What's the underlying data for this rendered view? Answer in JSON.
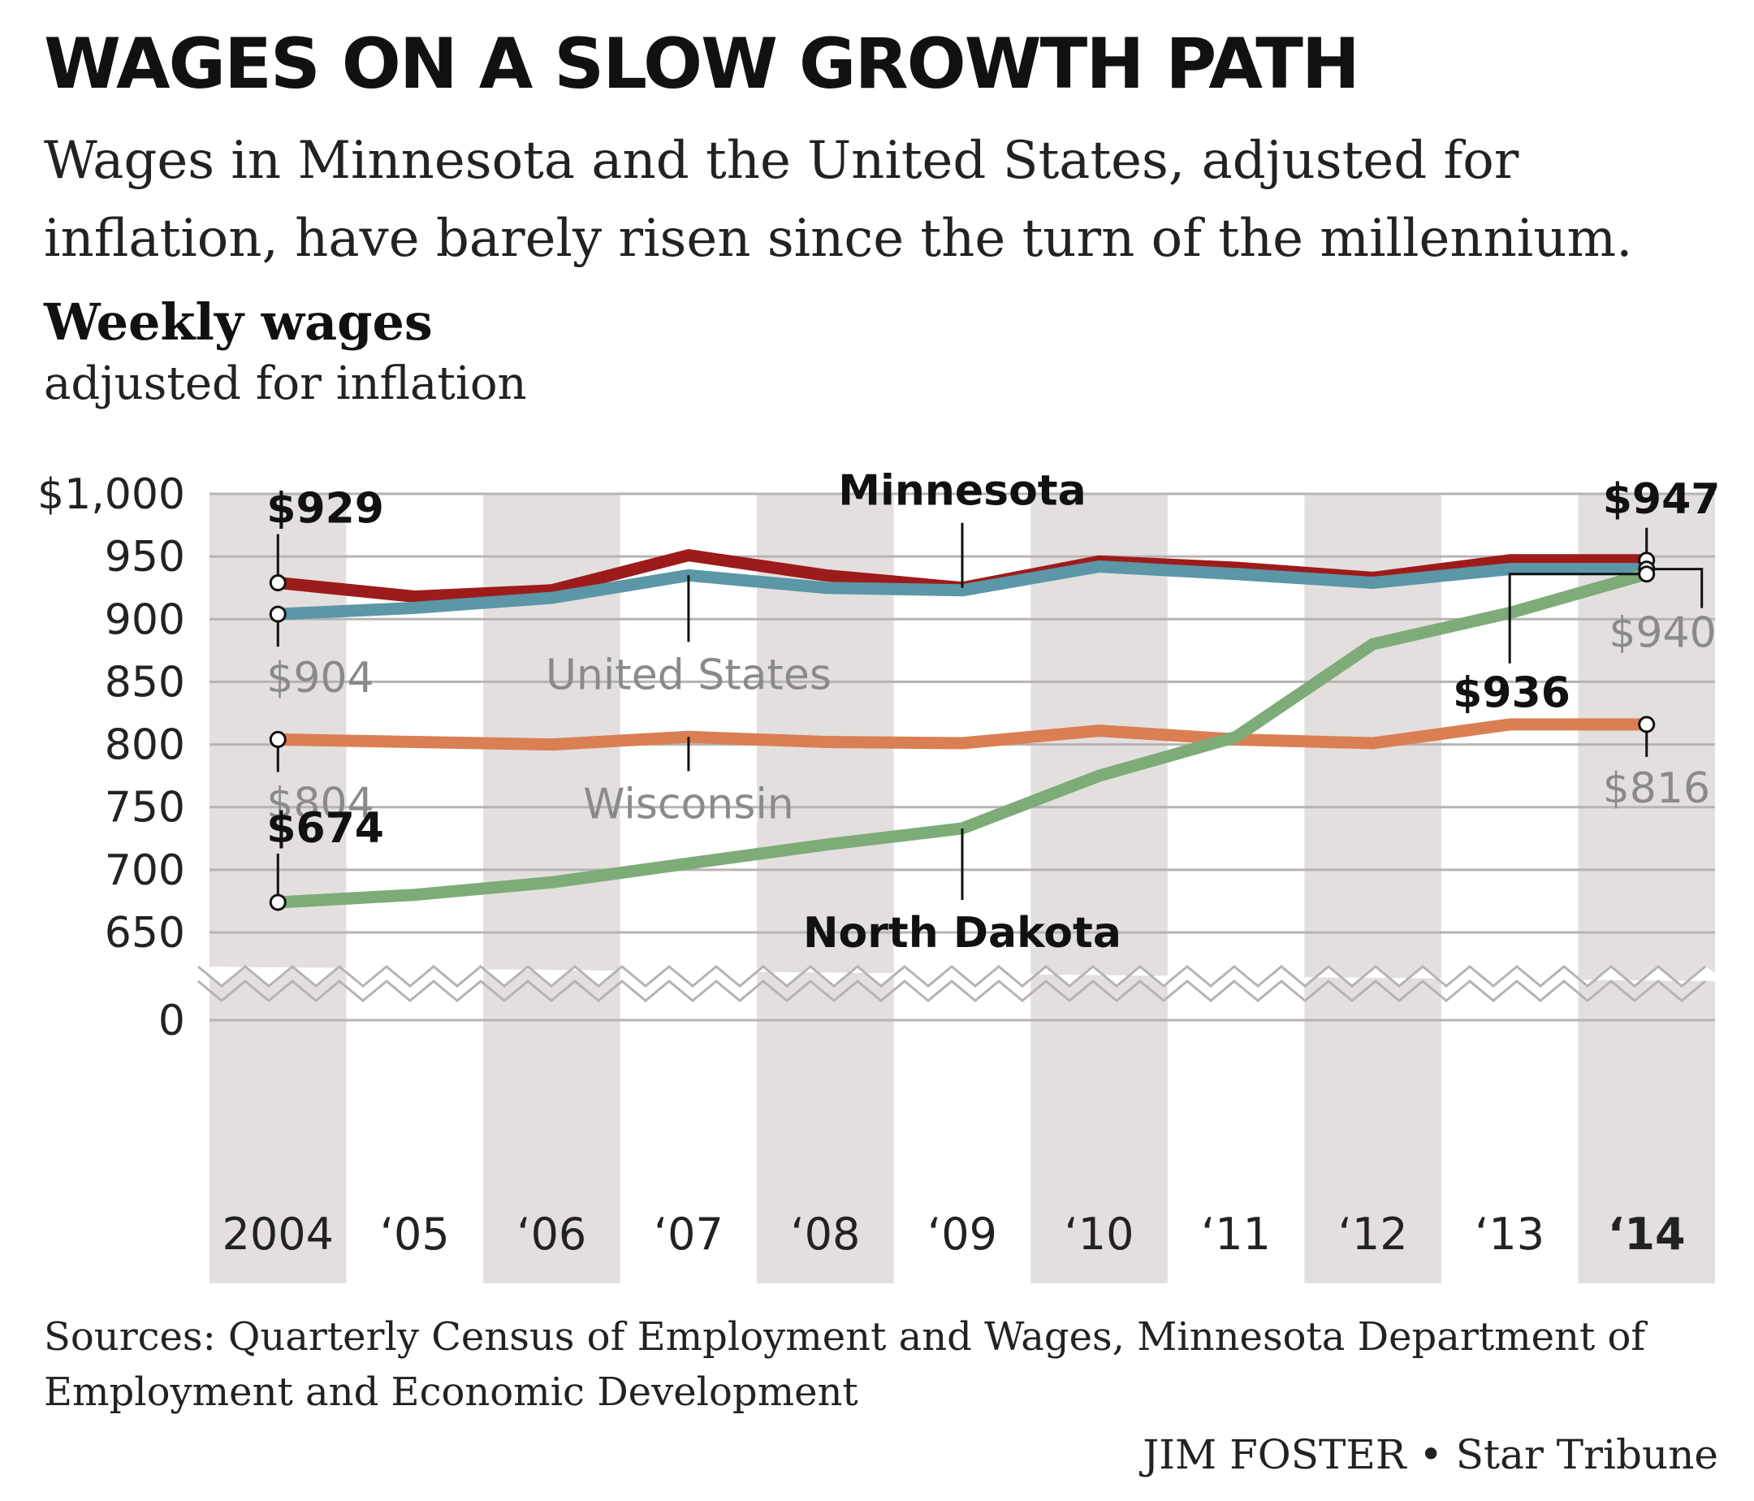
{
  "header": {
    "title": "WAGES ON A SLOW GROWTH PATH",
    "subtitle": "Wages in Minnesota and the United States, adjusted for inflation, have barely risen since the turn of the millennium."
  },
  "chart_header": {
    "title": "Weekly wages",
    "subtitle": "adjusted for inflation"
  },
  "chart_data": {
    "type": "line",
    "x": [
      "2004",
      "‘05",
      "‘06",
      "‘07",
      "‘08",
      "‘09",
      "‘10",
      "‘11",
      "‘12",
      "‘13",
      "‘14"
    ],
    "y_ticks": [
      {
        "value": 1000,
        "label": "$1,000"
      },
      {
        "value": 950,
        "label": "950"
      },
      {
        "value": 900,
        "label": "900"
      },
      {
        "value": 850,
        "label": "850"
      },
      {
        "value": 800,
        "label": "800"
      },
      {
        "value": 750,
        "label": "750"
      },
      {
        "value": 700,
        "label": "700"
      },
      {
        "value": 650,
        "label": "650"
      },
      {
        "value": 0,
        "label": "0"
      }
    ],
    "ylim": [
      650,
      1000
    ],
    "axis_break": "between 650 and 0",
    "grid": true,
    "alternating_column_shading": true,
    "series": [
      {
        "name": "Minnesota",
        "color": "#9e1b1b",
        "values": [
          929,
          918,
          923,
          951,
          935,
          925,
          946,
          941,
          933,
          947,
          947
        ],
        "start_label": "$929",
        "end_label": "$947"
      },
      {
        "name": "United States",
        "color": "#5b97a6",
        "values": [
          904,
          909,
          917,
          935,
          925,
          923,
          942,
          936,
          929,
          940,
          940
        ],
        "start_label": "$904",
        "end_label": "$940"
      },
      {
        "name": "Wisconsin",
        "color": "#da7f53",
        "values": [
          804,
          802,
          800,
          806,
          802,
          801,
          811,
          804,
          801,
          816,
          816
        ],
        "start_label": "$804",
        "end_label": "$816"
      },
      {
        "name": "North Dakota",
        "color": "#7dac78",
        "values": [
          674,
          680,
          690,
          705,
          720,
          733,
          775,
          806,
          880,
          905,
          936
        ],
        "start_label": "$674",
        "end_label": "$936"
      }
    ]
  },
  "footer": {
    "sources": "Sources: Quarterly Census of Employment and Wages, Minnesota Department of Employment and Economic Development",
    "credit": "JIM FOSTER • Star Tribune"
  }
}
